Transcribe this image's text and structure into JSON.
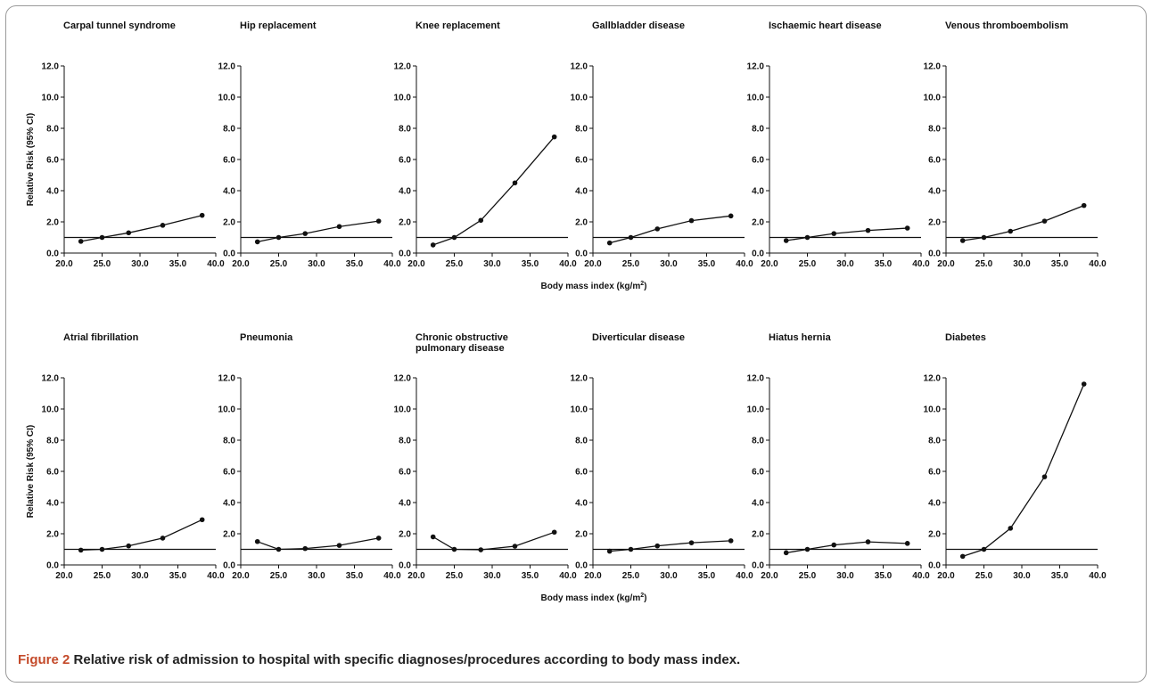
{
  "caption": {
    "number": "Figure 2",
    "text": "Relative risk of admission to hospital with specific diagnoses/procedures according to body mass index."
  },
  "axes": {
    "xlabel": "Body mass index (kg/m",
    "xlabel_sup": "2",
    "xlabel_close": ")",
    "ylabel": "Relative Risk (95% CI)",
    "x_ticks": [
      "20.0",
      "25.0",
      "30.0",
      "35.0",
      "40.0"
    ],
    "y_ticks": [
      "0.0",
      "2.0",
      "4.0",
      "6.0",
      "8.0",
      "10.0",
      "12.0"
    ],
    "xlim": [
      20,
      40
    ],
    "ylim": [
      0,
      12
    ],
    "reference_line": 1.0
  },
  "chart_data": [
    {
      "type": "line",
      "title": [
        "Carpal tunnel syndrome"
      ],
      "x": [
        22.2,
        25.0,
        28.5,
        33.0,
        38.2
      ],
      "values": [
        0.75,
        1.0,
        1.3,
        1.78,
        2.42
      ]
    },
    {
      "type": "line",
      "title": [
        "Hip replacement"
      ],
      "x": [
        22.2,
        25.0,
        28.5,
        33.0,
        38.2
      ],
      "values": [
        0.72,
        1.0,
        1.25,
        1.7,
        2.05
      ]
    },
    {
      "type": "line",
      "title": [
        "Knee replacement"
      ],
      "x": [
        22.2,
        25.0,
        28.5,
        33.0,
        38.2
      ],
      "values": [
        0.52,
        1.0,
        2.1,
        4.5,
        7.45
      ]
    },
    {
      "type": "line",
      "title": [
        "Gallbladder disease"
      ],
      "x": [
        22.2,
        25.0,
        28.5,
        33.0,
        38.2
      ],
      "values": [
        0.65,
        1.0,
        1.55,
        2.08,
        2.38
      ]
    },
    {
      "type": "line",
      "title": [
        "Ischaemic heart disease"
      ],
      "x": [
        22.2,
        25.0,
        28.5,
        33.0,
        38.2
      ],
      "values": [
        0.8,
        1.0,
        1.25,
        1.45,
        1.6
      ]
    },
    {
      "type": "line",
      "title": [
        "Venous thromboembolism"
      ],
      "x": [
        22.2,
        25.0,
        28.5,
        33.0,
        38.2
      ],
      "values": [
        0.8,
        1.0,
        1.4,
        2.05,
        3.05
      ]
    },
    {
      "type": "line",
      "title": [
        "Atrial fibrillation"
      ],
      "x": [
        22.2,
        25.0,
        28.5,
        33.0,
        38.2
      ],
      "values": [
        0.95,
        1.0,
        1.22,
        1.72,
        2.9
      ]
    },
    {
      "type": "line",
      "title": [
        "Pneumonia"
      ],
      "x": [
        22.2,
        25.0,
        28.5,
        33.0,
        38.2
      ],
      "values": [
        1.5,
        1.0,
        1.05,
        1.25,
        1.72
      ]
    },
    {
      "type": "line",
      "title": [
        "Chronic obstructive",
        "pulmonary disease"
      ],
      "x": [
        22.2,
        25.0,
        28.5,
        33.0,
        38.2
      ],
      "values": [
        1.8,
        1.0,
        0.97,
        1.2,
        2.1
      ]
    },
    {
      "type": "line",
      "title": [
        "Diverticular disease"
      ],
      "x": [
        22.2,
        25.0,
        28.5,
        33.0,
        38.2
      ],
      "values": [
        0.88,
        1.0,
        1.22,
        1.42,
        1.55
      ]
    },
    {
      "type": "line",
      "title": [
        "Hiatus hernia"
      ],
      "x": [
        22.2,
        25.0,
        28.5,
        33.0,
        38.2
      ],
      "values": [
        0.78,
        1.0,
        1.28,
        1.48,
        1.38
      ]
    },
    {
      "type": "line",
      "title": [
        "Diabetes"
      ],
      "x": [
        22.2,
        25.0,
        28.5,
        33.0,
        38.2
      ],
      "values": [
        0.55,
        1.0,
        2.35,
        5.65,
        11.6
      ]
    }
  ],
  "colors": {
    "line": "#111111",
    "caption_number": "#c44a2a"
  }
}
